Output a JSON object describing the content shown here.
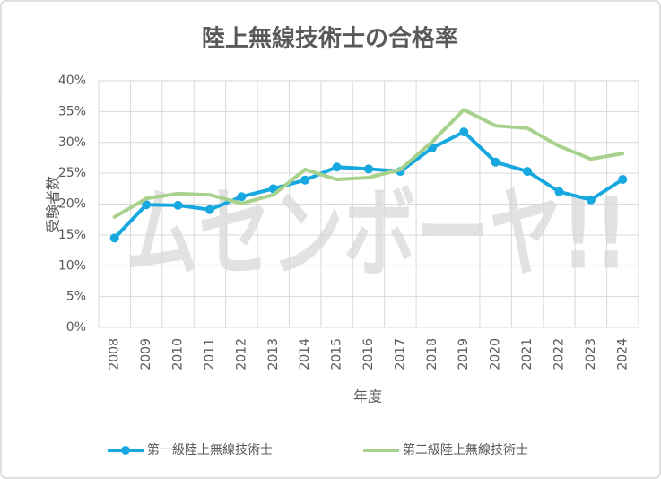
{
  "chart_data": {
    "type": "line",
    "title": "陸上無線技術士の合格率",
    "watermark": "ムセンボーヤ!!",
    "x_label": "年度",
    "y_label": "受験者数",
    "categories": [
      "2008",
      "2009",
      "2010",
      "2011",
      "2012",
      "2013",
      "2014",
      "2015",
      "2016",
      "2017",
      "2018",
      "2019",
      "2020",
      "2021",
      "2022",
      "2023",
      "2024"
    ],
    "series": [
      {
        "name": "第一級陸上無線技術士",
        "color": "#18a8e0",
        "marker": true,
        "values": [
          14.5,
          19.9,
          19.8,
          19.1,
          21.2,
          22.5,
          23.9,
          26.0,
          25.7,
          25.3,
          29.1,
          31.7,
          26.8,
          25.3,
          22.0,
          20.7,
          24.0
        ]
      },
      {
        "name": "第二級陸上無線技術士",
        "color": "#a9d18e",
        "marker": false,
        "values": [
          17.9,
          20.9,
          21.7,
          21.5,
          20.1,
          21.5,
          25.6,
          24.0,
          24.3,
          25.6,
          30.1,
          35.3,
          32.7,
          32.3,
          29.4,
          27.3,
          28.2
        ]
      }
    ],
    "ylim": [
      0,
      40
    ],
    "yticks": [
      {
        "value": 0,
        "label": "0%"
      },
      {
        "value": 5,
        "label": "5%"
      },
      {
        "value": 10,
        "label": "10%"
      },
      {
        "value": 15,
        "label": "15%"
      },
      {
        "value": 20,
        "label": "20%"
      },
      {
        "value": 25,
        "label": "25%"
      },
      {
        "value": 30,
        "label": "30%"
      },
      {
        "value": 35,
        "label": "35%"
      },
      {
        "value": 40,
        "label": "40%"
      }
    ],
    "grid": true,
    "legend": "bottom"
  }
}
